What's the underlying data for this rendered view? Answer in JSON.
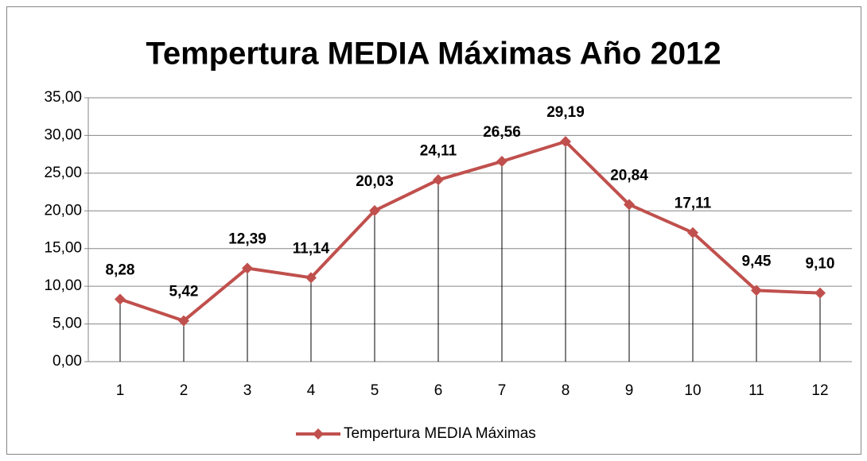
{
  "chart_data": {
    "type": "line",
    "title": "Tempertura MEDIA Máximas Año 2012",
    "categories": [
      "1",
      "2",
      "3",
      "4",
      "5",
      "6",
      "7",
      "8",
      "9",
      "10",
      "11",
      "12"
    ],
    "series": [
      {
        "name": "Tempertura MEDIA Máximas",
        "color": "#c0504d",
        "values": [
          8.28,
          5.42,
          12.39,
          11.14,
          20.03,
          24.11,
          26.56,
          29.19,
          20.84,
          17.11,
          9.45,
          9.1
        ],
        "value_labels": [
          "8,28",
          "5,42",
          "12,39",
          "11,14",
          "20,03",
          "24,11",
          "26,56",
          "29,19",
          "20,84",
          "17,11",
          "9,45",
          "9,10"
        ]
      }
    ],
    "ylim": [
      0,
      35
    ],
    "yticks": [
      {
        "value": 0,
        "label": "0,00"
      },
      {
        "value": 5,
        "label": "5,00"
      },
      {
        "value": 10,
        "label": "10,00"
      },
      {
        "value": 15,
        "label": "15,00"
      },
      {
        "value": 20,
        "label": "20,00"
      },
      {
        "value": 25,
        "label": "25,00"
      },
      {
        "value": 30,
        "label": "30,00"
      },
      {
        "value": 35,
        "label": "35,00"
      }
    ],
    "grid": true,
    "drop_lines": true,
    "legend": "bottom"
  }
}
